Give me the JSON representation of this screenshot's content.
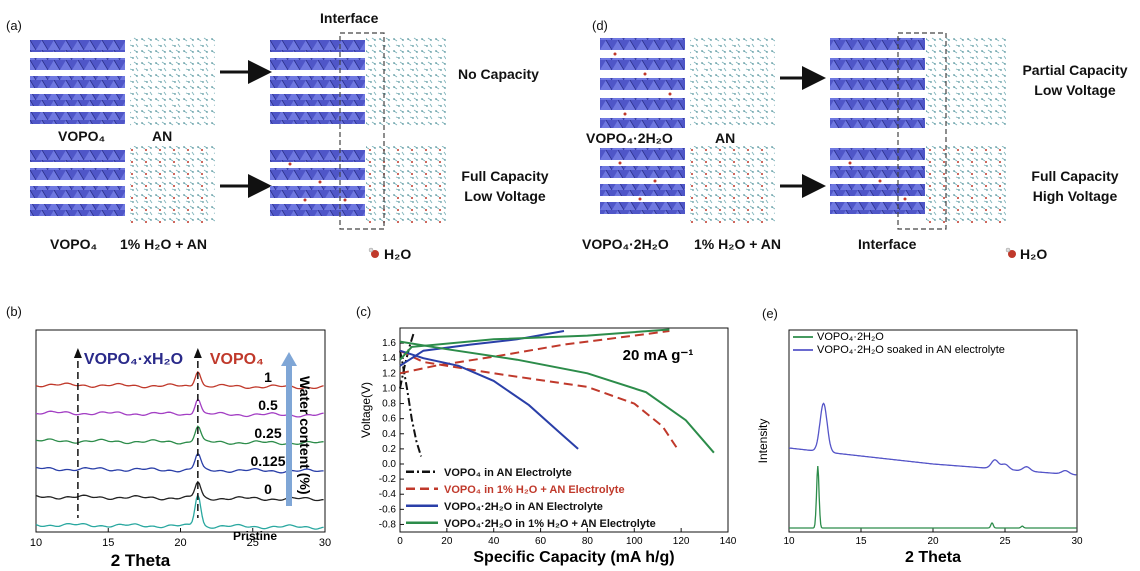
{
  "panel_letters": {
    "a": "(a)",
    "b": "(b)",
    "c": "(c)",
    "d": "(d)",
    "e": "(e)"
  },
  "panel_a": {
    "interface": "Interface",
    "row1_left": "VOPO₄",
    "row1_mid": "AN",
    "row1_result": "No Capacity",
    "row2_left": "VOPO₄",
    "row2_mid": "1% H₂O + AN",
    "row2_result_1": "Full Capacity",
    "row2_result_2": "Low Voltage",
    "water_legend": "H₂O"
  },
  "panel_d": {
    "interface": "Interface",
    "row1_left": "VOPO₄·2H₂O",
    "row1_mid": "AN",
    "row1_result_1": "Partial Capacity",
    "row1_result_2": "Low Voltage",
    "row2_left": "VOPO₄·2H₂O",
    "row2_mid": "1% H₂O + AN",
    "row2_result_1": "Full Capacity",
    "row2_result_2": "High Voltage",
    "water_legend": "H₂O"
  },
  "chart_data": [
    {
      "panel": "b",
      "type": "line",
      "xlabel": "2 Theta",
      "ylabel": "Water content (%)",
      "xlim": [
        10,
        30
      ],
      "xticks": [
        10,
        15,
        20,
        25,
        30
      ],
      "annotations": [
        "VOPO₄·xH₂O",
        "VOPO₄"
      ],
      "markers_2theta": [
        12.9,
        21.2
      ],
      "series": [
        {
          "name": "1",
          "color": "#c0392b",
          "peaks": [
            21.2
          ]
        },
        {
          "name": "0.5",
          "color": "#a33fc4",
          "peaks": [
            21.2
          ]
        },
        {
          "name": "0.25",
          "color": "#2c8c4a",
          "peaks": [
            21.2
          ]
        },
        {
          "name": "0.125",
          "color": "#2a3fa8",
          "peaks": [
            21.2
          ]
        },
        {
          "name": "0",
          "color": "#222222",
          "peaks": [
            21.2
          ]
        },
        {
          "name": "Pristine",
          "color": "#2aa8a0",
          "peaks": [
            21.2
          ]
        }
      ]
    },
    {
      "panel": "c",
      "type": "line",
      "title": "20 mA g⁻¹",
      "xlabel": "Specific Capacity (mA h/g)",
      "ylabel": "Voltage(V)",
      "xlim": [
        0,
        140
      ],
      "ylim": [
        -0.9,
        1.8
      ],
      "xticks": [
        0,
        20,
        40,
        60,
        80,
        100,
        120,
        140
      ],
      "yticks": [
        -0.8,
        -0.6,
        -0.4,
        -0.2,
        0.0,
        0.2,
        0.4,
        0.6,
        0.8,
        1.0,
        1.2,
        1.4,
        1.6
      ],
      "series": [
        {
          "name": "VOPO₄ in AN Electrolyte",
          "color": "#111111",
          "dash": "8,3,2,3",
          "discharge": [
            [
              0,
              1.5
            ],
            [
              1,
              1.35
            ],
            [
              3,
              1.0
            ],
            [
              5,
              0.6
            ],
            [
              7,
              0.3
            ],
            [
              9,
              0.1
            ]
          ],
          "charge": [
            [
              0,
              1.0
            ],
            [
              2,
              1.3
            ],
            [
              4,
              1.55
            ],
            [
              6,
              1.75
            ]
          ]
        },
        {
          "name": "VOPO₄ in 1% H₂O + AN Electrolyte",
          "color": "#c0392b",
          "dash": "9,5",
          "discharge": [
            [
              0,
              1.5
            ],
            [
              10,
              1.35
            ],
            [
              40,
              1.2
            ],
            [
              80,
              1.02
            ],
            [
              100,
              0.8
            ],
            [
              112,
              0.5
            ],
            [
              118,
              0.22
            ]
          ],
          "charge": [
            [
              0,
              1.2
            ],
            [
              15,
              1.3
            ],
            [
              40,
              1.42
            ],
            [
              70,
              1.58
            ],
            [
              100,
              1.7
            ],
            [
              115,
              1.76
            ]
          ]
        },
        {
          "name": "VOPO₄·2H₂O in AN Electrolyte",
          "color": "#2a3fa8",
          "dash": "",
          "discharge": [
            [
              0,
              1.5
            ],
            [
              10,
              1.4
            ],
            [
              25,
              1.3
            ],
            [
              40,
              1.1
            ],
            [
              55,
              0.78
            ],
            [
              68,
              0.42
            ],
            [
              76,
              0.2
            ]
          ],
          "charge": [
            [
              0,
              1.3
            ],
            [
              10,
              1.5
            ],
            [
              30,
              1.58
            ],
            [
              50,
              1.65
            ],
            [
              70,
              1.76
            ]
          ]
        },
        {
          "name": "VOPO₄·2H₂O in 1% H₂O + AN Electrolyte",
          "color": "#2c8c4a",
          "dash": "",
          "discharge": [
            [
              0,
              1.62
            ],
            [
              20,
              1.52
            ],
            [
              50,
              1.38
            ],
            [
              80,
              1.2
            ],
            [
              105,
              0.95
            ],
            [
              122,
              0.58
            ],
            [
              134,
              0.15
            ]
          ],
          "charge": [
            [
              0,
              1.38
            ],
            [
              5,
              1.55
            ],
            [
              40,
              1.65
            ],
            [
              80,
              1.7
            ],
            [
              115,
              1.78
            ]
          ]
        }
      ]
    },
    {
      "panel": "e",
      "type": "line",
      "xlabel": "2 Theta",
      "ylabel": "Intensity",
      "xlim": [
        10,
        30
      ],
      "xticks": [
        10,
        15,
        20,
        25,
        30
      ],
      "series": [
        {
          "name": "VOPO₄·2H₂O",
          "color": "#2c8c4a",
          "peaks": [
            [
              12.0,
              1.0
            ],
            [
              24.1,
              0.08
            ],
            [
              26.2,
              0.03
            ]
          ]
        },
        {
          "name": "VOPO₄·2H₂O soaked in AN electrolyte",
          "color": "#5555c8",
          "peaks": [
            [
              12.4,
              0.55
            ],
            [
              24.3,
              0.1
            ],
            [
              25.0,
              0.06
            ],
            [
              26.5,
              0.05
            ],
            [
              29.2,
              0.04
            ]
          ]
        }
      ]
    }
  ]
}
